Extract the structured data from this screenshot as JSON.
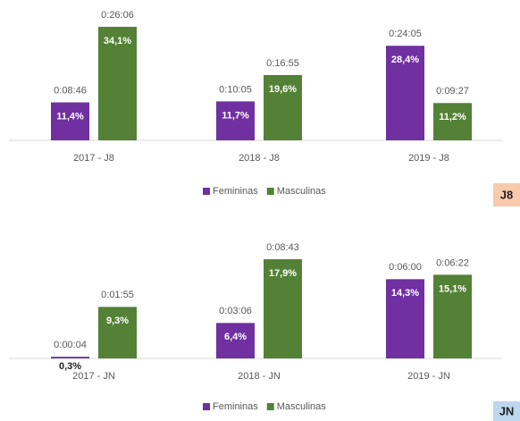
{
  "chart_data": [
    {
      "type": "bar",
      "tag": "J8",
      "tag_color": "#f8cbad",
      "ylim": [
        0,
        40
      ],
      "categories": [
        "2017 - J8",
        "2018 - J8",
        "2019 - J8"
      ],
      "series": [
        {
          "name": "Femininas",
          "color": "#7030a0",
          "values": [
            11.4,
            11.7,
            28.4
          ],
          "value_labels": [
            "11,4%",
            "11,7%",
            "28,4%"
          ],
          "time_labels": [
            "0:08:46",
            "0:10:05",
            "0:24:05"
          ]
        },
        {
          "name": "Masculinas",
          "color": "#538135",
          "values": [
            34.1,
            19.6,
            11.2
          ],
          "value_labels": [
            "34,1%",
            "19,6%",
            "11,2%"
          ],
          "time_labels": [
            "0:26:06",
            "0:16:55",
            "0:09:27"
          ]
        }
      ]
    },
    {
      "type": "bar",
      "tag": "JN",
      "tag_color": "#bdd7ee",
      "ylim": [
        0,
        20
      ],
      "categories": [
        "2017 - JN",
        "2018 - JN",
        "2019 - JN"
      ],
      "series": [
        {
          "name": "Femininas",
          "color": "#7030a0",
          "values": [
            0.3,
            6.4,
            14.3
          ],
          "value_labels": [
            "0,3%",
            "6,4%",
            "14,3%"
          ],
          "time_labels": [
            "0:00:04",
            "0:03:06",
            "0:06:00"
          ]
        },
        {
          "name": "Masculinas",
          "color": "#538135",
          "values": [
            9.3,
            17.9,
            15.1
          ],
          "value_labels": [
            "9,3%",
            "17,9%",
            "15,1%"
          ],
          "time_labels": [
            "0:01:55",
            "0:08:43",
            "0:06:22"
          ]
        }
      ]
    }
  ]
}
